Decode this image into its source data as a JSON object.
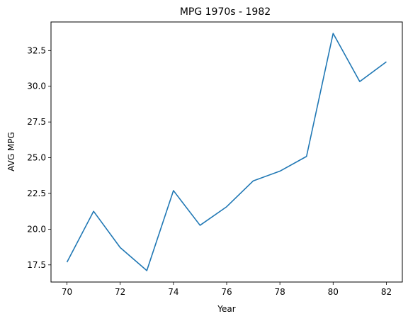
{
  "chart_data": {
    "type": "line",
    "title": "MPG 1970s - 1982",
    "xlabel": "Year",
    "ylabel": "AVG MPG",
    "x": [
      70,
      71,
      72,
      73,
      74,
      75,
      76,
      77,
      78,
      79,
      80,
      81,
      82
    ],
    "y": [
      17.69,
      21.25,
      18.71,
      17.1,
      22.7,
      20.27,
      21.57,
      23.38,
      24.06,
      25.09,
      33.7,
      30.33,
      31.71
    ],
    "xlim": [
      69.4,
      82.6
    ],
    "ylim": [
      16.3,
      34.5
    ],
    "xticks": [
      70,
      72,
      74,
      76,
      78,
      80,
      82
    ],
    "yticks": [
      17.5,
      20.0,
      22.5,
      25.0,
      27.5,
      30.0,
      32.5
    ],
    "xtick_labels": [
      "70",
      "72",
      "74",
      "76",
      "78",
      "80",
      "82"
    ],
    "ytick_labels": [
      "17.5",
      "20.0",
      "22.5",
      "25.0",
      "27.5",
      "30.0",
      "32.5"
    ],
    "line_color": "#1f77b4",
    "grid": false,
    "legend": false
  }
}
